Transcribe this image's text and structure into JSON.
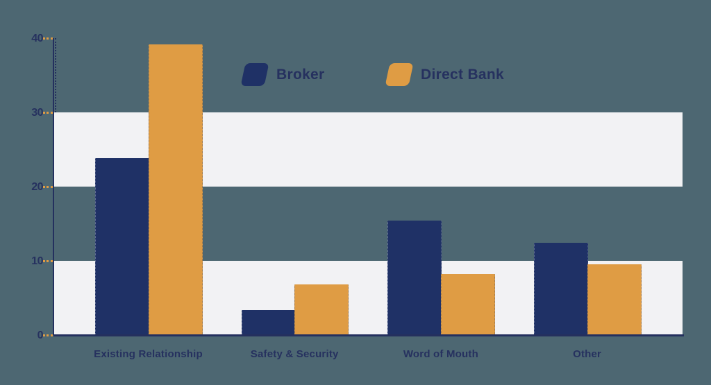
{
  "chart_data": {
    "type": "bar",
    "title": "",
    "xlabel": "",
    "ylabel": "",
    "categories": [
      "Existing Relationship",
      "Safety & Security",
      "Word of Mouth",
      "Other"
    ],
    "series": [
      {
        "name": "Broker",
        "color": "#1f3166",
        "values": [
          23.8,
          3.4,
          15.4,
          12.4
        ]
      },
      {
        "name": "Direct Bank",
        "color": "#df9c44",
        "values": [
          39.2,
          6.8,
          8.2,
          9.5
        ]
      }
    ],
    "ylim": [
      0,
      40
    ],
    "yticks": [
      0,
      10,
      20,
      30,
      40
    ],
    "ytick_labels": [
      "0",
      "10",
      "20",
      "30",
      "40"
    ],
    "grid": "off",
    "band_ranges": [
      [
        0,
        10
      ],
      [
        20,
        30
      ]
    ],
    "legend_position": "top-center"
  },
  "colors": {
    "background": "#4d6772",
    "band": "#f2f2f4",
    "axis": "#24305e",
    "text": "#26315f",
    "tick": "#df9c44"
  }
}
